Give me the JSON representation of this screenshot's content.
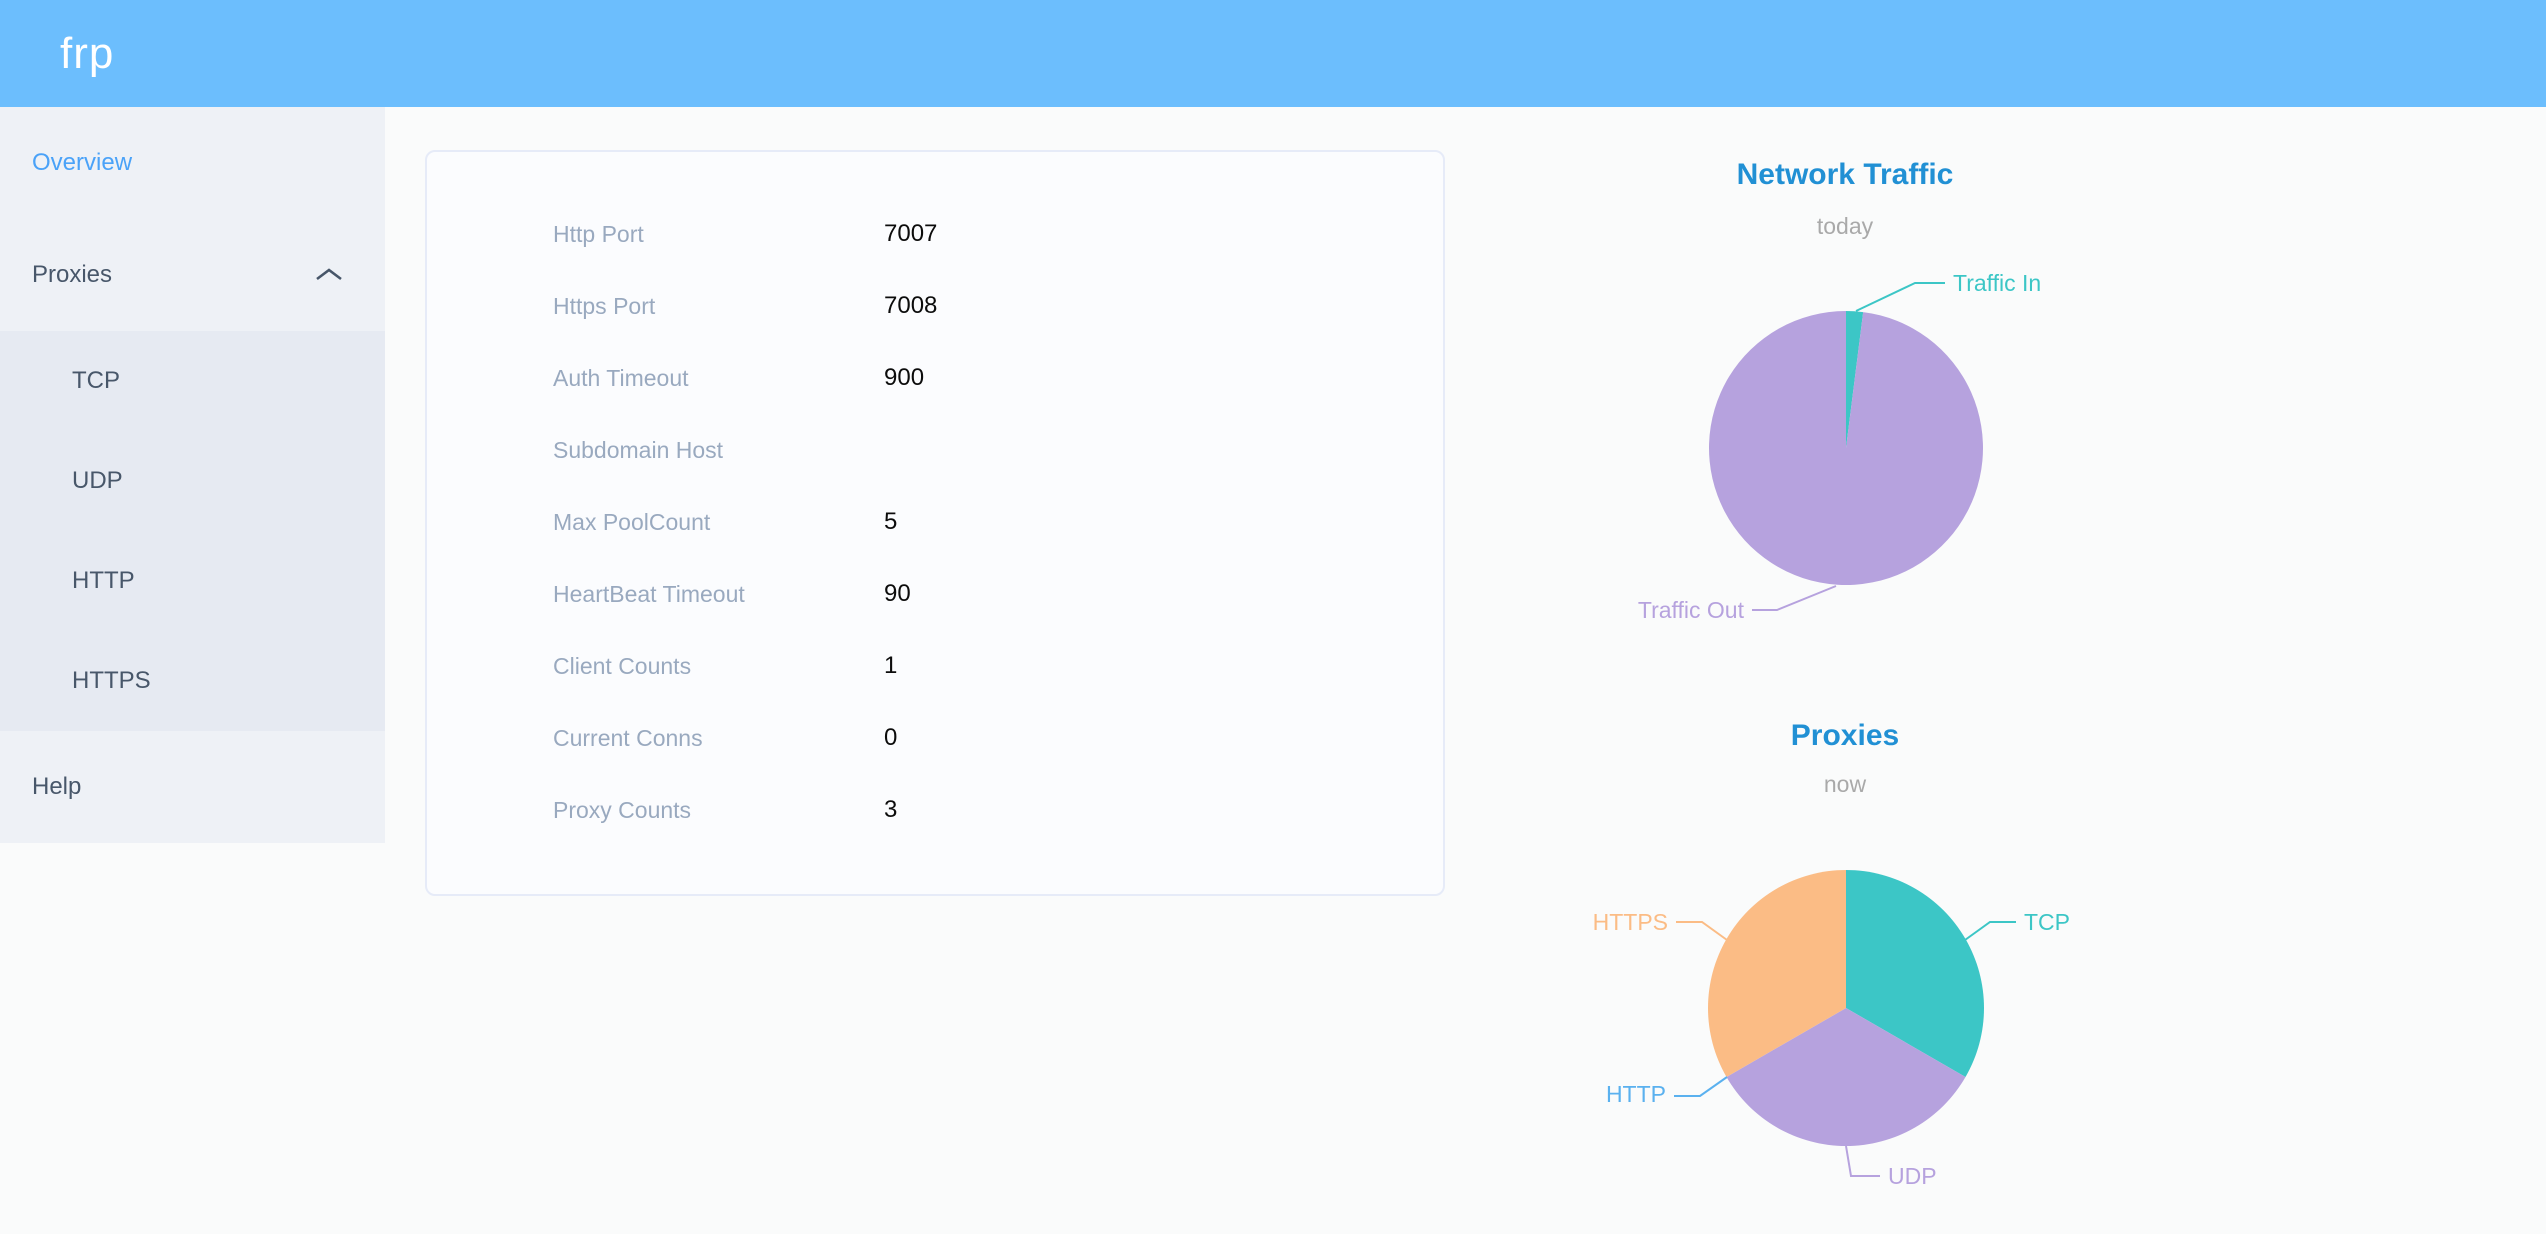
{
  "header": {
    "logo": "frp"
  },
  "colors": {
    "header_bg": "#6cbefd",
    "sidebar_bg": "#eef1f6",
    "submenu_bg": "#e6eaf2",
    "sidebar_text": "#48576a",
    "sidebar_active": "#4aa2f8",
    "chart_title": "#2190d4",
    "label_gray": "#99a9bf"
  },
  "sidebar": {
    "items": [
      {
        "label": "Overview",
        "active": true
      },
      {
        "label": "Proxies",
        "expanded": true,
        "children": [
          "TCP",
          "UDP",
          "HTTP",
          "HTTPS"
        ]
      },
      {
        "label": "Help",
        "active": false
      }
    ]
  },
  "overview": {
    "rows": [
      {
        "label": "Http Port",
        "value": "7007"
      },
      {
        "label": "Https Port",
        "value": "7008"
      },
      {
        "label": "Auth Timeout",
        "value": "900"
      },
      {
        "label": "Subdomain Host",
        "value": ""
      },
      {
        "label": "Max PoolCount",
        "value": "5"
      },
      {
        "label": "HeartBeat Timeout",
        "value": "90"
      },
      {
        "label": "Client Counts",
        "value": "1"
      },
      {
        "label": "Current Conns",
        "value": "0"
      },
      {
        "label": "Proxy Counts",
        "value": "3"
      }
    ]
  },
  "chart_data": [
    {
      "type": "pie",
      "title": "Network Traffic",
      "subtitle": "today",
      "unit": "percent-estimate",
      "legend_position": "none",
      "series": [
        {
          "name": "Traffic In",
          "value": 2,
          "color": "#3cc6c6"
        },
        {
          "name": "Traffic Out",
          "value": 98,
          "color": "#b6a2de"
        }
      ]
    },
    {
      "type": "pie",
      "title": "Proxies",
      "subtitle": "now",
      "unit": "count",
      "legend_position": "none",
      "series": [
        {
          "name": "TCP",
          "value": 1,
          "color": "#3cc6c6"
        },
        {
          "name": "UDP",
          "value": 1,
          "color": "#b6a2de"
        },
        {
          "name": "HTTP",
          "value": 0,
          "color": "#5ab1ef"
        },
        {
          "name": "HTTPS",
          "value": 1,
          "color": "#fbbc85"
        }
      ]
    }
  ]
}
